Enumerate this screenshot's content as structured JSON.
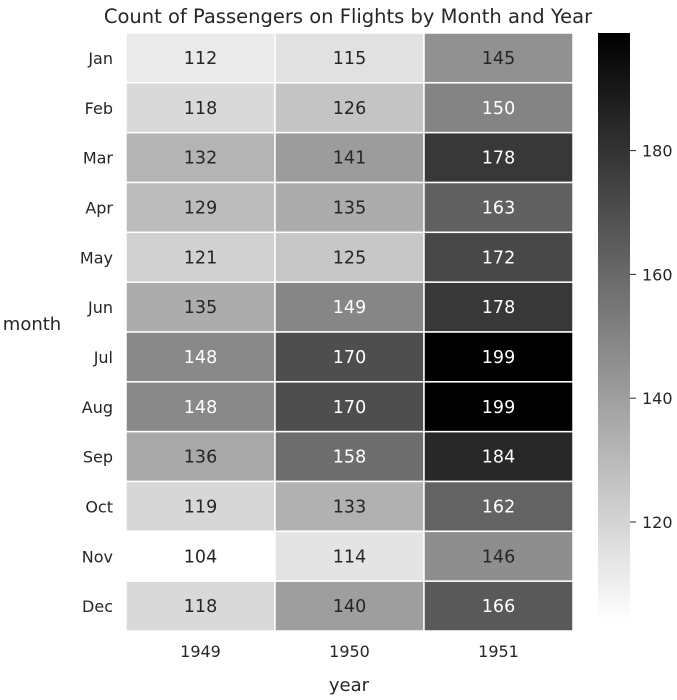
{
  "chart_data": {
    "type": "heatmap",
    "title": "Count of Passengers on Flights by Month and Year",
    "xlabel": "year",
    "ylabel": "month",
    "x_categories": [
      "1949",
      "1950",
      "1951"
    ],
    "y_categories": [
      "Jan",
      "Feb",
      "Mar",
      "Apr",
      "May",
      "Jun",
      "Jul",
      "Aug",
      "Sep",
      "Oct",
      "Nov",
      "Dec"
    ],
    "values": [
      [
        112,
        115,
        145
      ],
      [
        118,
        126,
        150
      ],
      [
        132,
        141,
        178
      ],
      [
        129,
        135,
        163
      ],
      [
        121,
        125,
        172
      ],
      [
        135,
        149,
        178
      ],
      [
        148,
        170,
        199
      ],
      [
        148,
        170,
        199
      ],
      [
        136,
        158,
        184
      ],
      [
        119,
        133,
        162
      ],
      [
        104,
        114,
        146
      ],
      [
        118,
        140,
        166
      ]
    ],
    "colormap": "Greys",
    "vmin": 104,
    "vmax": 199,
    "colorbar_ticks": [
      120,
      140,
      160,
      180
    ],
    "annotations": true,
    "colors": {
      "low": "#ffffff",
      "high": "#000000",
      "cell_border": "#ffffff",
      "text_dark": "#262626",
      "text_light": "#ffffff"
    }
  }
}
